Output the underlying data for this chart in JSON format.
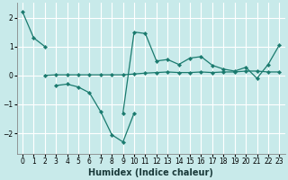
{
  "background_color": "#c8eaea",
  "grid_color": "#ffffff",
  "line_color": "#1a7a6e",
  "xlabel": "Humidex (Indice chaleur)",
  "xlim": [
    -0.5,
    23.5
  ],
  "ylim": [
    -2.7,
    2.5
  ],
  "yticks": [
    -2,
    -1,
    0,
    1,
    2
  ],
  "xticks": [
    0,
    1,
    2,
    3,
    4,
    5,
    6,
    7,
    8,
    9,
    10,
    11,
    12,
    13,
    14,
    15,
    16,
    17,
    18,
    19,
    20,
    21,
    22,
    23
  ],
  "series": [
    {
      "x": [
        0,
        1,
        2
      ],
      "y": [
        2.2,
        1.3,
        1.0
      ]
    },
    {
      "x": [
        3,
        4,
        5,
        6,
        7,
        8,
        9,
        10
      ],
      "y": [
        -0.35,
        -0.3,
        -0.4,
        -0.6,
        -1.25,
        -2.05,
        -2.3,
        -1.3
      ]
    },
    {
      "x": [
        2,
        3,
        4,
        5,
        6,
        7,
        8,
        9,
        10,
        11,
        12,
        13,
        14,
        15,
        16,
        17,
        18,
        19,
        20,
        21,
        22,
        23
      ],
      "y": [
        0.0,
        0.02,
        0.02,
        0.02,
        0.02,
        0.02,
        0.02,
        0.02,
        0.05,
        0.08,
        0.1,
        0.12,
        0.1,
        0.1,
        0.12,
        0.1,
        0.12,
        0.12,
        0.15,
        0.15,
        0.12,
        0.12
      ]
    },
    {
      "x": [
        9,
        10,
        11,
        12,
        13,
        14,
        15,
        16,
        17,
        18,
        19,
        20,
        21,
        22,
        23
      ],
      "y": [
        -1.3,
        1.5,
        1.45,
        0.5,
        0.55,
        0.38,
        0.6,
        0.65,
        0.35,
        0.22,
        0.15,
        0.28,
        -0.1,
        0.38,
        1.05
      ]
    }
  ]
}
